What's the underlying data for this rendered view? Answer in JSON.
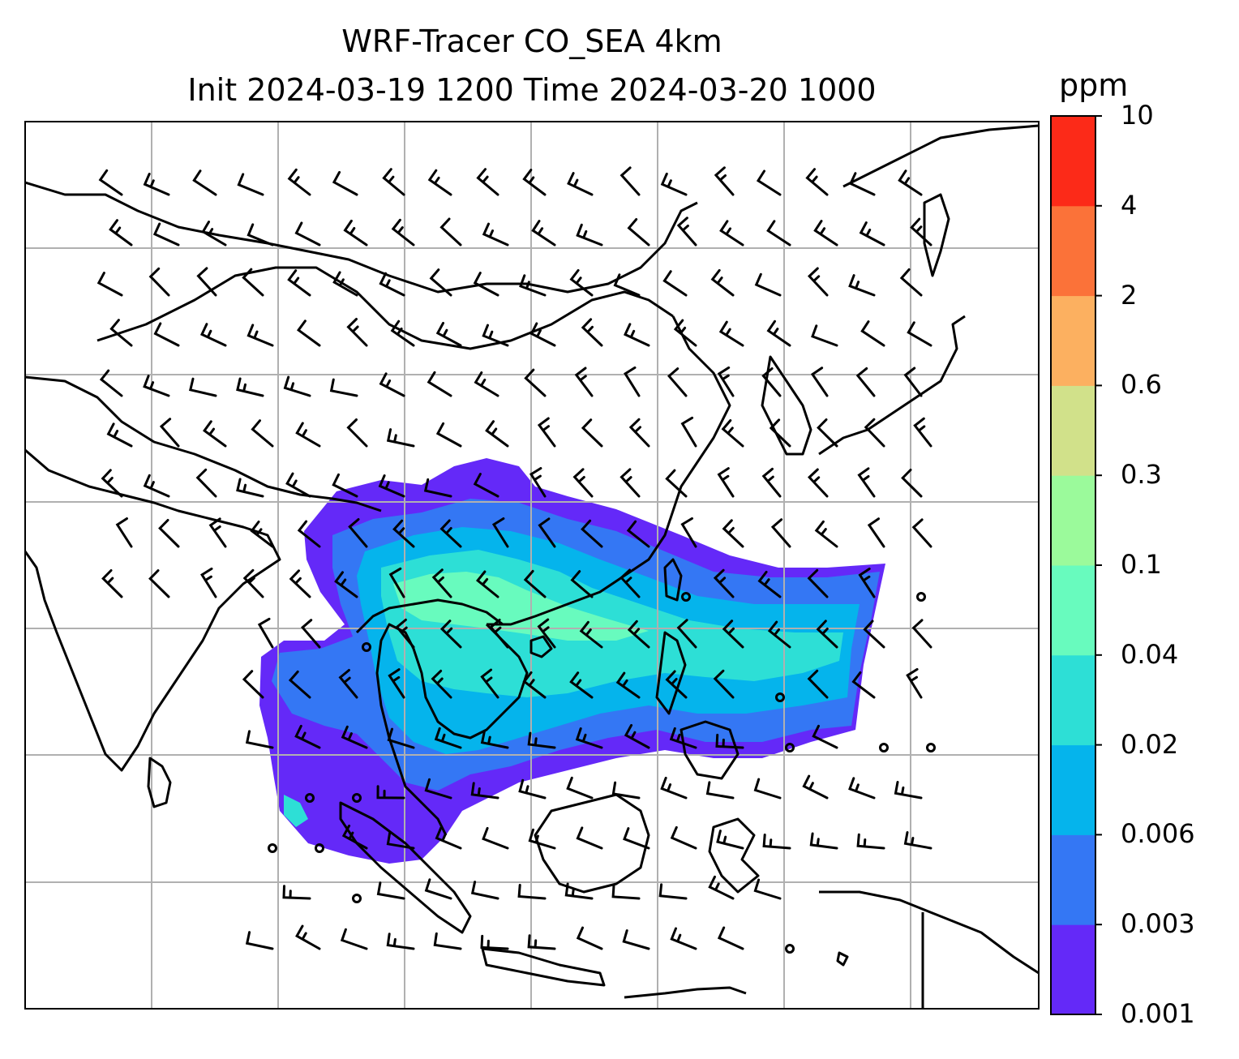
{
  "title": {
    "line1": "WRF-Tracer CO_SEA 4km",
    "line2": "Init 2024-03-19 1200 Time 2024-03-20 1000"
  },
  "colorbar": {
    "unit": "ppm",
    "ticks": [
      "0.001",
      "0.003",
      "0.006",
      "0.02",
      "0.04",
      "0.1",
      "0.3",
      "0.6",
      "2",
      "4",
      "10"
    ],
    "colors": [
      "#6429f8",
      "#3477f4",
      "#05b4ec",
      "#2ddfd6",
      "#68fbbe",
      "#9bfa9b",
      "#d1e18a",
      "#fcb060",
      "#fb7239",
      "#fc2a18"
    ]
  },
  "map": {
    "coastline_color": "#000000",
    "gridline_color": "#b0b0b0",
    "barb_color": "#000000"
  }
}
